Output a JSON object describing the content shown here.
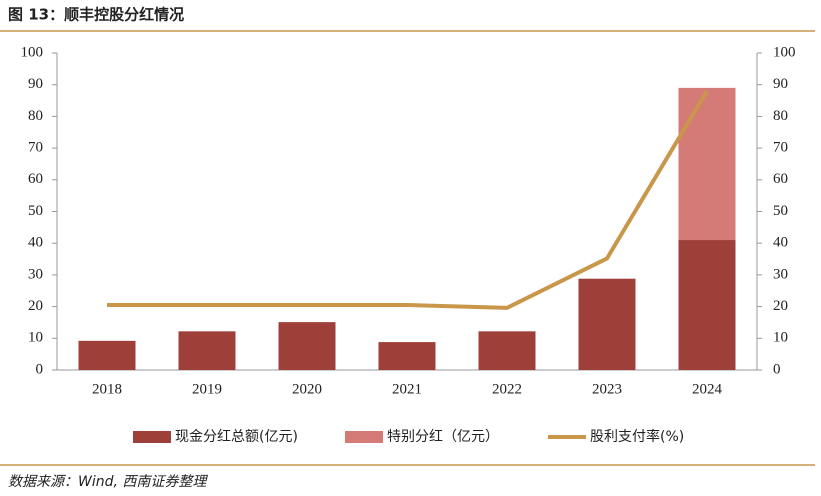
{
  "chart_data": {
    "type": "bar-line",
    "title": "图 13：顺丰控股分红情况",
    "categories": [
      "2018",
      "2019",
      "2020",
      "2021",
      "2022",
      "2023",
      "2024"
    ],
    "series": [
      {
        "name": "现金分红总额(亿元)",
        "type": "bar",
        "color": "#9e3f3a",
        "values": [
          9.2,
          12.2,
          15.1,
          8.8,
          12.2,
          28.8,
          41
        ]
      },
      {
        "name": "特别分红（亿元）",
        "type": "bar",
        "color": "#d47b77",
        "values": [
          null,
          null,
          null,
          null,
          null,
          null,
          48
        ]
      },
      {
        "name": "股利支付率(%)",
        "type": "line",
        "axis": "y2",
        "color": "#c9964a",
        "values": [
          20.5,
          20.5,
          20.5,
          20.5,
          19.6,
          35.2,
          88
        ]
      }
    ],
    "ylim": [
      0,
      100
    ],
    "yticks": [
      0,
      10,
      20,
      30,
      40,
      50,
      60,
      70,
      80,
      90,
      100
    ],
    "y2lim": [
      0,
      100
    ],
    "y2ticks": [
      0,
      10,
      20,
      30,
      40,
      50,
      60,
      70,
      80,
      90,
      100
    ],
    "grid": false,
    "legend": "bottom",
    "source": "数据来源：Wind, 西南证券整理"
  }
}
